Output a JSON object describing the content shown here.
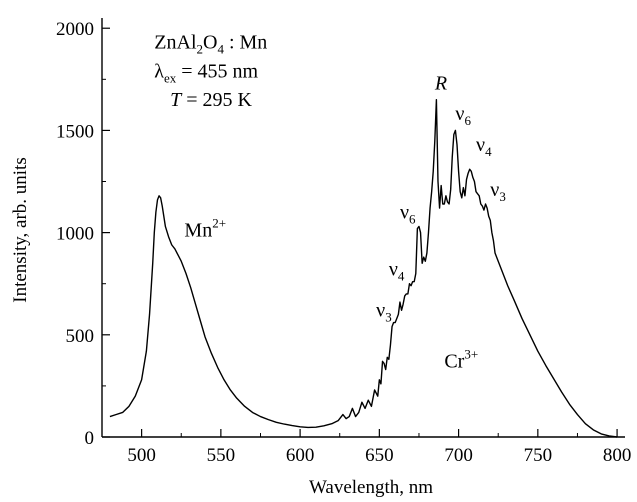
{
  "chart_data": {
    "type": "line",
    "title": "",
    "xlabel": "Wavelength, nm",
    "ylabel": "Intensity, arb. units",
    "xlim": [
      475,
      805
    ],
    "ylim": [
      0,
      2050
    ],
    "xticks": [
      500,
      550,
      600,
      650,
      700,
      750,
      800
    ],
    "yticks": [
      0,
      500,
      1000,
      1500,
      2000
    ],
    "grid": false,
    "legend": "none",
    "line_color": "#000000",
    "series": [
      {
        "x": [
          480,
          484,
          488,
          492,
          496,
          500,
          503,
          505,
          507,
          508,
          509,
          510,
          511,
          512,
          513,
          514,
          515,
          517,
          519,
          521,
          523,
          525,
          528,
          531,
          534,
          537,
          540,
          544,
          548,
          552,
          556,
          560,
          565,
          570,
          575,
          580,
          585,
          590,
          595,
          600,
          605,
          610,
          615,
          620,
          624,
          627,
          629,
          631,
          633,
          635,
          637,
          639,
          641,
          643,
          645,
          647,
          649,
          650,
          651,
          652,
          653,
          654,
          655,
          656,
          657,
          658,
          659,
          660,
          661,
          662,
          663,
          664,
          665,
          666,
          667,
          668,
          669,
          670,
          671,
          672,
          673,
          674,
          675,
          676,
          677,
          678,
          679,
          680,
          681,
          682,
          683,
          684,
          685,
          686,
          687,
          688,
          689,
          690,
          691,
          692,
          693,
          694,
          695,
          696,
          697,
          698,
          699,
          700,
          701,
          702,
          703,
          704,
          705,
          706,
          707,
          708,
          709,
          710,
          711,
          712,
          713,
          714,
          715,
          716,
          717,
          718,
          719,
          720,
          721,
          722,
          723,
          725,
          728,
          731,
          735,
          740,
          745,
          750,
          755,
          760,
          765,
          770,
          775,
          780,
          785,
          790,
          795,
          800
        ],
        "y": [
          100,
          110,
          120,
          150,
          200,
          280,
          420,
          600,
          850,
          1000,
          1100,
          1160,
          1180,
          1170,
          1130,
          1080,
          1030,
          980,
          940,
          920,
          890,
          860,
          800,
          730,
          650,
          570,
          490,
          410,
          340,
          280,
          230,
          190,
          150,
          120,
          100,
          85,
          72,
          63,
          56,
          50,
          47,
          48,
          55,
          65,
          80,
          110,
          90,
          100,
          140,
          100,
          120,
          170,
          140,
          180,
          150,
          230,
          200,
          280,
          260,
          370,
          360,
          330,
          390,
          380,
          450,
          540,
          560,
          560,
          580,
          600,
          660,
          620,
          650,
          690,
          700,
          700,
          750,
          740,
          760,
          760,
          800,
          1020,
          1030,
          1000,
          850,
          880,
          860,
          900,
          1000,
          1120,
          1200,
          1300,
          1450,
          1650,
          1250,
          1120,
          1230,
          1140,
          1140,
          1180,
          1150,
          1140,
          1210,
          1370,
          1480,
          1500,
          1430,
          1300,
          1200,
          1170,
          1220,
          1180,
          1260,
          1290,
          1310,
          1300,
          1270,
          1250,
          1200,
          1190,
          1180,
          1140,
          1130,
          1110,
          1140,
          1120,
          1080,
          1060,
          1000,
          960,
          900,
          860,
          800,
          740,
          670,
          580,
          500,
          420,
          350,
          285,
          220,
          160,
          110,
          65,
          35,
          15,
          5,
          0
        ]
      }
    ],
    "annotations": [
      {
        "id": "sample",
        "text": "ZnAl",
        "sub": "2",
        "text2": "O",
        "sub2": "4",
        "text3": " : Mn",
        "x": 508,
        "y": 1900
      },
      {
        "id": "lambda",
        "greek": "λ",
        "sub": "ex",
        "text": " = 455 nm",
        "x": 508,
        "y": 1760
      },
      {
        "id": "temp",
        "italic": "T",
        "text": " = 295 K",
        "x": 518,
        "y": 1620
      },
      {
        "id": "mn",
        "text": "Mn",
        "sup": "2+",
        "x": 527,
        "y": 980
      },
      {
        "id": "cr",
        "text": "Cr",
        "sup": "3+",
        "x": 691,
        "y": 340
      },
      {
        "id": "R",
        "italic": "R",
        "x": 685,
        "y": 1700
      },
      {
        "id": "nu6-top",
        "text": "ν",
        "sub": "6",
        "x": 698,
        "y": 1550
      },
      {
        "id": "nu4-top",
        "text": "ν",
        "sub": "4",
        "x": 711,
        "y": 1400
      },
      {
        "id": "nu3-top",
        "text": "ν",
        "sub": "3",
        "x": 720,
        "y": 1180
      },
      {
        "id": "nu6-left",
        "text": "ν",
        "sub": "6",
        "x": 663,
        "y": 1070
      },
      {
        "id": "nu4-left",
        "text": "ν",
        "sub": "4",
        "x": 656,
        "y": 790
      },
      {
        "id": "nu3-left",
        "text": "ν",
        "sub": "3",
        "x": 648,
        "y": 590
      }
    ]
  }
}
